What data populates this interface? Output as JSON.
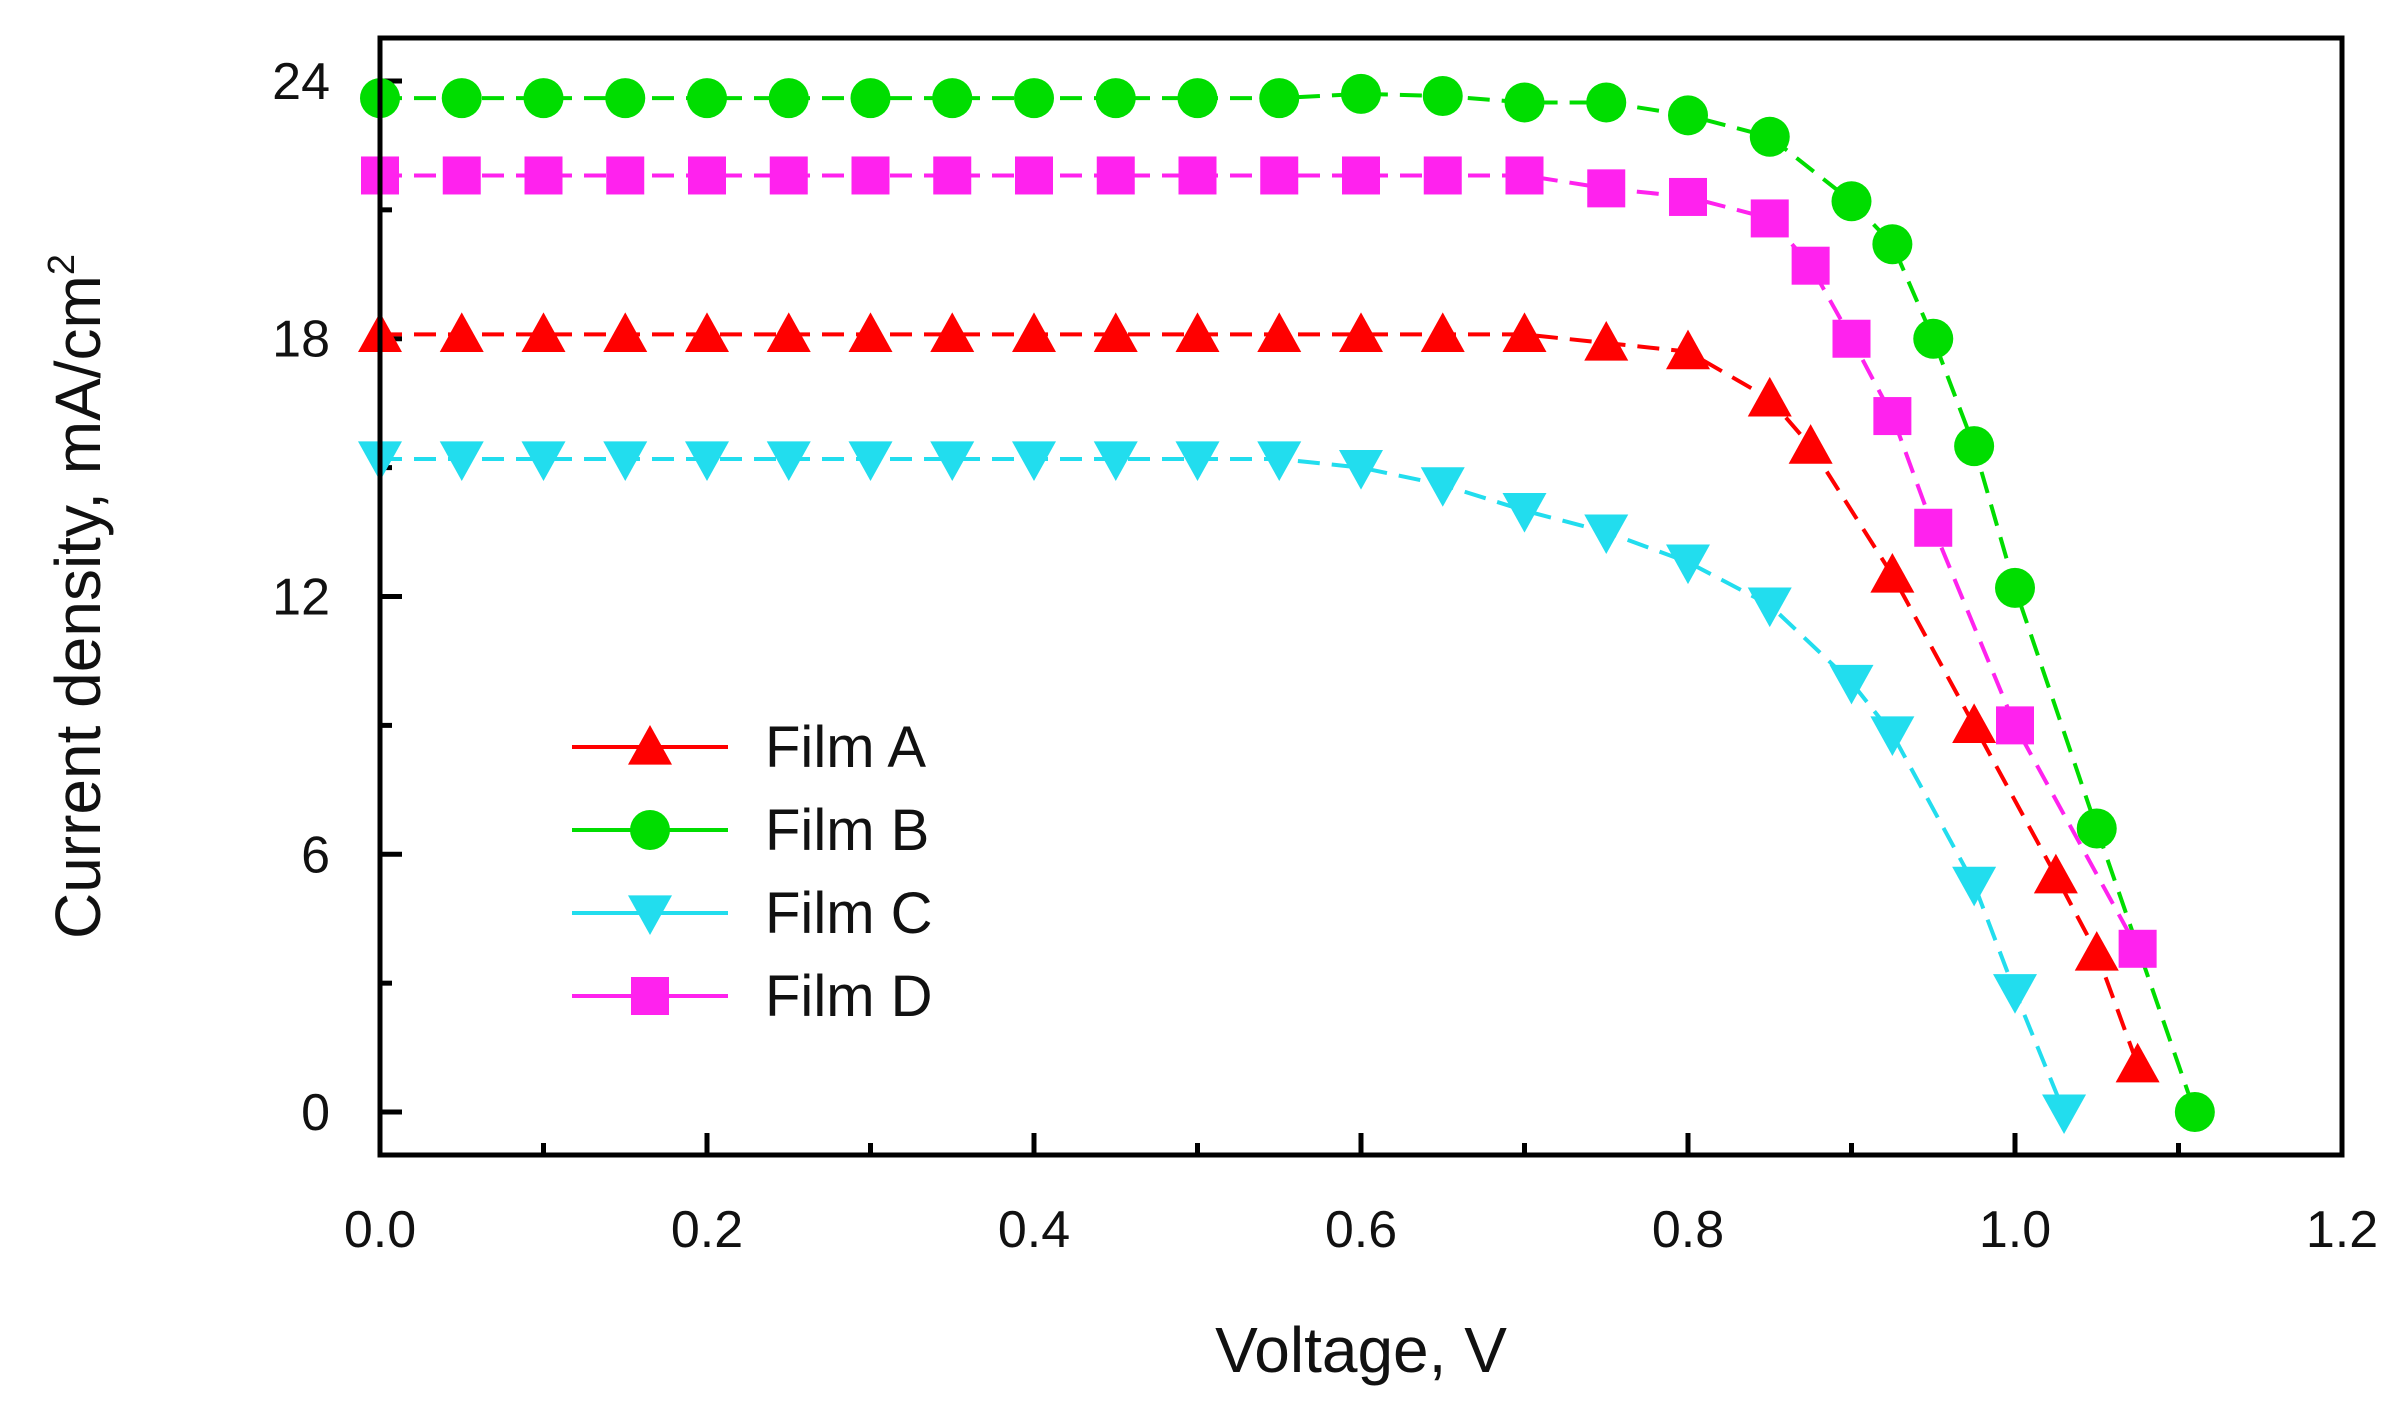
{
  "chart_data": {
    "type": "line",
    "title": "",
    "xlabel": "Voltage, V",
    "ylabel_main": "Current density, mA/cm",
    "ylabel_sup": "2",
    "xlim": [
      0,
      1.2
    ],
    "ylim": [
      -1,
      25
    ],
    "xticks": [
      0.0,
      0.2,
      0.4,
      0.6,
      0.8,
      1.0,
      1.2
    ],
    "xtick_labels": [
      "0.0",
      "0.2",
      "0.4",
      "0.6",
      "0.8",
      "1.0",
      "1.2"
    ],
    "yticks": [
      0,
      6,
      12,
      18,
      24
    ],
    "ytick_labels": [
      "0",
      "6",
      "12",
      "18",
      "24"
    ],
    "legend_position": "lower-left",
    "series": [
      {
        "name": "Film A",
        "color": "#ff0000",
        "marker": "triangle-up",
        "x": [
          0,
          0.05,
          0.1,
          0.15,
          0.2,
          0.25,
          0.3,
          0.35,
          0.4,
          0.45,
          0.5,
          0.55,
          0.6,
          0.65,
          0.7,
          0.75,
          0.8,
          0.85,
          0.875,
          0.925,
          0.975,
          1.025,
          1.05,
          1.075
        ],
        "values": [
          18.1,
          18.1,
          18.1,
          18.1,
          18.1,
          18.1,
          18.1,
          18.1,
          18.1,
          18.1,
          18.1,
          18.1,
          18.1,
          18.1,
          18.1,
          17.9,
          17.7,
          16.6,
          15.5,
          12.5,
          9.0,
          5.5,
          3.7,
          1.1
        ]
      },
      {
        "name": "Film B",
        "color": "#00dd00",
        "marker": "circle",
        "x": [
          0,
          0.05,
          0.1,
          0.15,
          0.2,
          0.25,
          0.3,
          0.35,
          0.4,
          0.45,
          0.5,
          0.55,
          0.6,
          0.65,
          0.7,
          0.75,
          0.8,
          0.85,
          0.9,
          0.925,
          0.95,
          0.975,
          1.0,
          1.05,
          1.11
        ],
        "values": [
          23.6,
          23.6,
          23.6,
          23.6,
          23.6,
          23.6,
          23.6,
          23.6,
          23.6,
          23.6,
          23.6,
          23.6,
          23.7,
          23.65,
          23.5,
          23.5,
          23.2,
          22.7,
          21.2,
          20.2,
          18.0,
          15.5,
          12.2,
          6.6,
          0.0
        ]
      },
      {
        "name": "Film C",
        "color": "#22ddee",
        "marker": "triangle-down",
        "x": [
          0,
          0.05,
          0.1,
          0.15,
          0.2,
          0.25,
          0.3,
          0.35,
          0.4,
          0.45,
          0.5,
          0.55,
          0.6,
          0.65,
          0.7,
          0.75,
          0.8,
          0.85,
          0.9,
          0.925,
          0.975,
          1.0,
          1.03
        ],
        "values": [
          15.2,
          15.2,
          15.2,
          15.2,
          15.2,
          15.2,
          15.2,
          15.2,
          15.2,
          15.2,
          15.2,
          15.2,
          15.0,
          14.6,
          14.0,
          13.5,
          12.8,
          11.8,
          10.0,
          8.8,
          5.3,
          2.8,
          0.0
        ]
      },
      {
        "name": "Film D",
        "color": "#ff22ee",
        "marker": "square",
        "x": [
          0,
          0.05,
          0.1,
          0.15,
          0.2,
          0.25,
          0.3,
          0.35,
          0.4,
          0.45,
          0.5,
          0.55,
          0.6,
          0.65,
          0.7,
          0.75,
          0.8,
          0.85,
          0.875,
          0.9,
          0.925,
          0.95,
          1.0,
          1.075
        ],
        "values": [
          21.8,
          21.8,
          21.8,
          21.8,
          21.8,
          21.8,
          21.8,
          21.8,
          21.8,
          21.8,
          21.8,
          21.8,
          21.8,
          21.8,
          21.8,
          21.5,
          21.3,
          20.8,
          19.7,
          18.0,
          16.2,
          13.6,
          9.0,
          3.8
        ]
      }
    ]
  }
}
